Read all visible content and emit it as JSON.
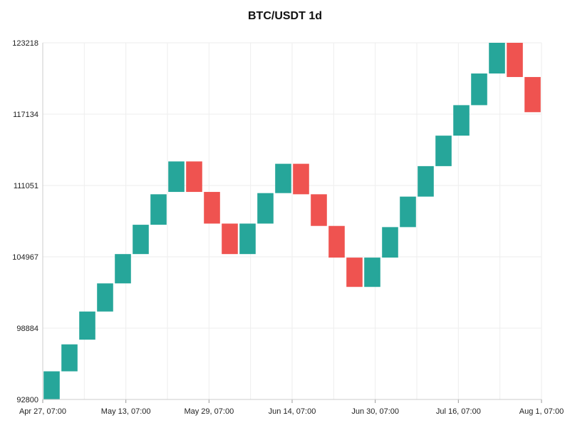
{
  "chart_data": {
    "type": "renko",
    "title": "BTC/USDT 1d",
    "y_ticks": [
      92800,
      98884,
      104967,
      111051,
      117134,
      123218
    ],
    "ylim": [
      92800,
      123218
    ],
    "x_ticks": [
      "Apr 27, 07:00",
      "May 13, 07:00",
      "May 29, 07:00",
      "Jun 14, 07:00",
      "Jun 30, 07:00",
      "Jul 16, 07:00",
      "Aug 1, 07:00"
    ],
    "grid": true,
    "colors": {
      "up": "#26a69a",
      "down": "#ef5350",
      "grid": "#eeeeee",
      "axis": "#cccccc"
    },
    "bricks": [
      {
        "open": 92800,
        "close": 95200,
        "dir": "up"
      },
      {
        "open": 95200,
        "close": 97500,
        "dir": "up"
      },
      {
        "open": 97900,
        "close": 100300,
        "dir": "up"
      },
      {
        "open": 100300,
        "close": 102700,
        "dir": "up"
      },
      {
        "open": 102700,
        "close": 105200,
        "dir": "up"
      },
      {
        "open": 105200,
        "close": 107700,
        "dir": "up"
      },
      {
        "open": 107700,
        "close": 110300,
        "dir": "up"
      },
      {
        "open": 110500,
        "close": 113100,
        "dir": "up"
      },
      {
        "open": 113100,
        "close": 110500,
        "dir": "down"
      },
      {
        "open": 110500,
        "close": 107800,
        "dir": "down"
      },
      {
        "open": 107800,
        "close": 105200,
        "dir": "down"
      },
      {
        "open": 105200,
        "close": 107800,
        "dir": "up"
      },
      {
        "open": 107800,
        "close": 110400,
        "dir": "up"
      },
      {
        "open": 110400,
        "close": 112900,
        "dir": "up"
      },
      {
        "open": 112900,
        "close": 110300,
        "dir": "down"
      },
      {
        "open": 110300,
        "close": 107600,
        "dir": "down"
      },
      {
        "open": 107600,
        "close": 104900,
        "dir": "down"
      },
      {
        "open": 104900,
        "close": 102400,
        "dir": "down"
      },
      {
        "open": 102400,
        "close": 104900,
        "dir": "up"
      },
      {
        "open": 104900,
        "close": 107500,
        "dir": "up"
      },
      {
        "open": 107500,
        "close": 110100,
        "dir": "up"
      },
      {
        "open": 110100,
        "close": 112700,
        "dir": "up"
      },
      {
        "open": 112700,
        "close": 115300,
        "dir": "up"
      },
      {
        "open": 115300,
        "close": 117900,
        "dir": "up"
      },
      {
        "open": 117900,
        "close": 120600,
        "dir": "up"
      },
      {
        "open": 120600,
        "close": 123218,
        "dir": "up"
      },
      {
        "open": 123218,
        "close": 120300,
        "dir": "down"
      },
      {
        "open": 120300,
        "close": 117300,
        "dir": "down"
      }
    ]
  }
}
